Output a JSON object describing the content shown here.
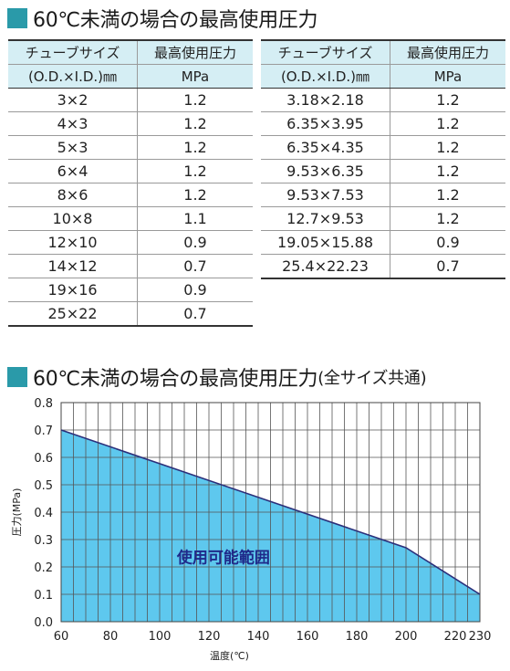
{
  "section1": {
    "title": "60℃未満の場合の最高使用圧力"
  },
  "table_left": {
    "header_row1": [
      "チューブサイズ",
      "最高使用圧力"
    ],
    "header_row2": [
      "(O.D.×I.D.)㎜",
      "MPa"
    ],
    "rows": [
      [
        "3×2",
        "1.2"
      ],
      [
        "4×3",
        "1.2"
      ],
      [
        "5×3",
        "1.2"
      ],
      [
        "6×4",
        "1.2"
      ],
      [
        "8×6",
        "1.2"
      ],
      [
        "10×8",
        "1.1"
      ],
      [
        "12×10",
        "0.9"
      ],
      [
        "14×12",
        "0.7"
      ],
      [
        "19×16",
        "0.9"
      ],
      [
        "25×22",
        "0.7"
      ]
    ]
  },
  "table_right": {
    "header_row1": [
      "チューブサイズ",
      "最高使用圧力"
    ],
    "header_row2": [
      "(O.D.×I.D.)㎜",
      "MPa"
    ],
    "rows": [
      [
        "3.18×2.18",
        "1.2"
      ],
      [
        "6.35×3.95",
        "1.2"
      ],
      [
        "6.35×4.35",
        "1.2"
      ],
      [
        "9.53×6.35",
        "1.2"
      ],
      [
        "9.53×7.53",
        "1.2"
      ],
      [
        "12.7×9.53",
        "1.2"
      ],
      [
        "19.05×15.88",
        "0.9"
      ],
      [
        "25.4×22.23",
        "0.7"
      ]
    ]
  },
  "section2": {
    "title": "60℃未満の場合の最高使用圧力",
    "title_suffix": "(全サイズ共通)"
  },
  "colors": {
    "accent_square": "#2a9aa9",
    "table_header_bg": "#d5eef4",
    "area_fill": "#5ec8ee",
    "line": "#2b2f7a",
    "region_label": "#1f2a8a"
  },
  "chart_data": {
    "type": "area",
    "x": [
      60,
      200,
      230
    ],
    "y": [
      0.7,
      0.27,
      0.1
    ],
    "xlabel": "温度(℃)",
    "ylabel": "圧力(MPa)",
    "xlim": [
      60,
      230
    ],
    "ylim": [
      0,
      0.8
    ],
    "xticks": [
      60,
      80,
      100,
      120,
      140,
      160,
      180,
      200,
      220,
      230
    ],
    "yticks": [
      0.0,
      0.1,
      0.2,
      0.3,
      0.4,
      0.5,
      0.6,
      0.7,
      0.8
    ],
    "ytick_labels": [
      "0.0",
      "0.1",
      "0.2",
      "0.3",
      "0.4",
      "0.5",
      "0.6",
      "0.7",
      "0.8"
    ],
    "x_minor_step": 5,
    "grid": true,
    "region_label": "使用可能範囲"
  }
}
